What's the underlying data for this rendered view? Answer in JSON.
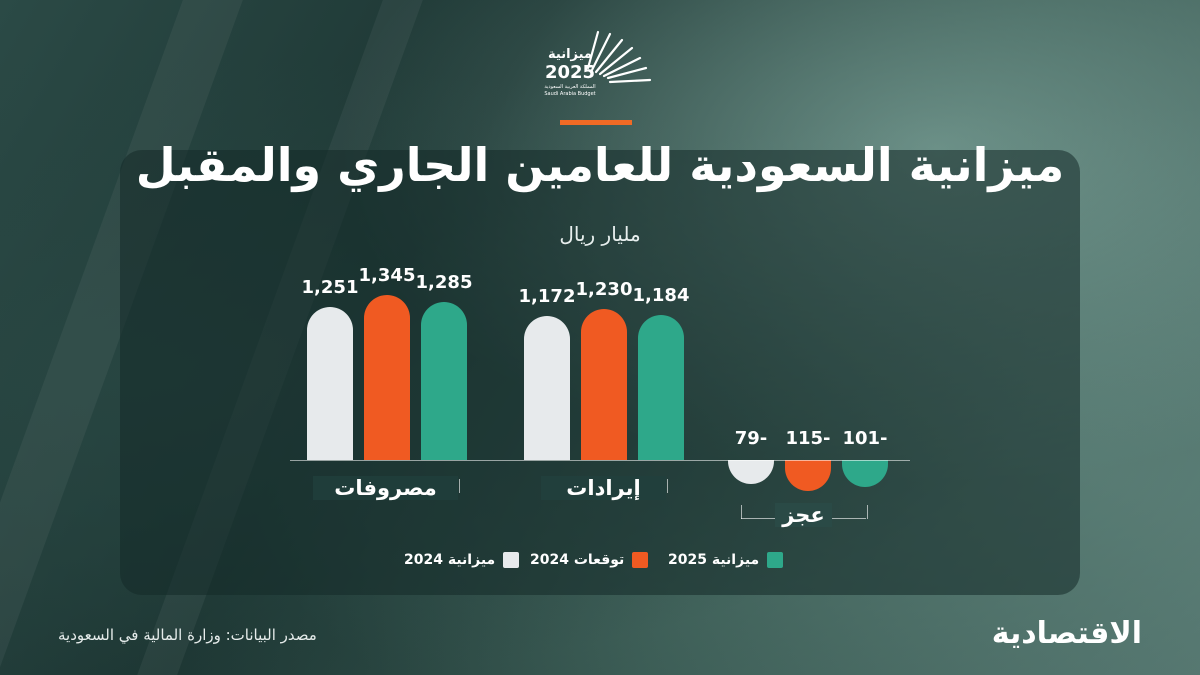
{
  "logo": {
    "arabic": "ميزانية",
    "year": "2025",
    "subtitle_ar": "المملكة العربية السعودية",
    "subtitle_en": "Saudi Arabia Budget"
  },
  "header": {
    "title": "ميزانية السعودية للعامين الجاري والمقبل",
    "unit": "مليار ريال"
  },
  "colors": {
    "budget_2025": "#2ea88a",
    "forecast_2024": "#f05a22",
    "budget_2024": "#e7eaec",
    "accent": "#f06a25"
  },
  "chart_data": {
    "type": "bar",
    "categories": [
      "مصروفات",
      "إيرادات",
      "عجز"
    ],
    "series": [
      {
        "name": "ميزانية 2024",
        "values": [
          1251,
          1172,
          -79
        ],
        "labels": [
          "1,251",
          "1,172",
          "79-"
        ]
      },
      {
        "name": "توقعات 2024",
        "values": [
          1345,
          1230,
          -115
        ],
        "labels": [
          "1,345",
          "1,230",
          "115-"
        ]
      },
      {
        "name": "ميزانية 2025",
        "values": [
          1285,
          1184,
          -101
        ],
        "labels": [
          "1,285",
          "1,184",
          "101-"
        ]
      }
    ],
    "ylabel": "مليار ريال",
    "legend_position": "bottom"
  },
  "legend": {
    "budget_2025": "ميزانية 2025",
    "forecast_2024": "توقعات 2024",
    "budget_2024": "ميزانية 2024"
  },
  "footer": {
    "source": "مصدر البيانات: وزارة المالية في السعودية",
    "brand": "الاقتصادية"
  }
}
